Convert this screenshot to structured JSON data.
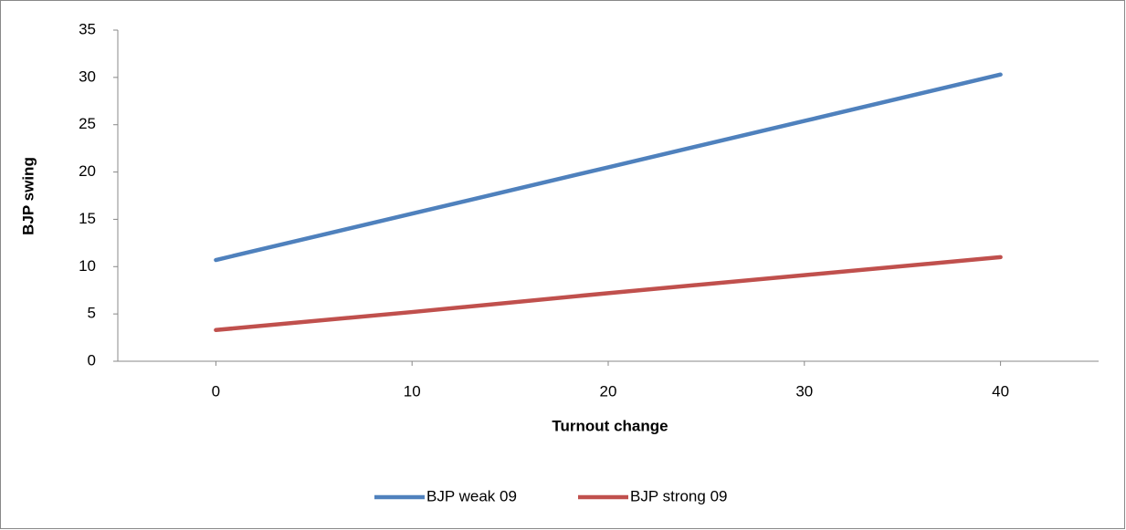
{
  "chart_data": {
    "type": "line",
    "x_label": "Turnout change",
    "y_label": "BJP swing",
    "x": [
      0,
      10,
      20,
      30,
      40
    ],
    "series": [
      {
        "name": "BJP weak 09",
        "color": "#4f81bd",
        "values": [
          10.7,
          15.6,
          20.5,
          25.4,
          30.3
        ]
      },
      {
        "name": "BJP strong 09",
        "color": "#c0504d",
        "values": [
          3.3,
          5.2,
          7.2,
          9.1,
          11.0
        ]
      }
    ],
    "xlim": [
      -5,
      45
    ],
    "xticks": [
      0,
      10,
      20,
      30,
      40
    ],
    "ylim": [
      0,
      35
    ],
    "yticks": [
      0,
      5,
      10,
      15,
      20,
      25,
      30,
      35
    ],
    "grid": false,
    "legend": "bottom"
  }
}
